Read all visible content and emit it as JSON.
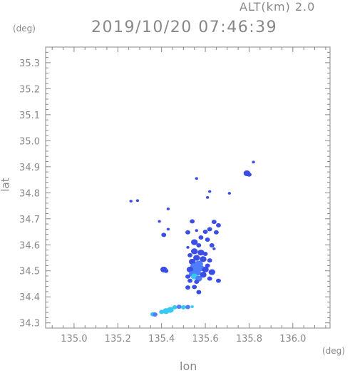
{
  "header": {
    "altitude_label": "ALT(km) 2.0",
    "datetime": "2019/10/20 07:46:39"
  },
  "axes": {
    "x_unit": "(deg)",
    "y_unit": "(deg)",
    "x_title": "lon",
    "y_title": "lat"
  },
  "colors": {
    "axis": "#888888",
    "echo_dark": "#3a4ee6",
    "echo_mid": "#4f7dff",
    "echo_light": "#38c9f2",
    "background": "#ffffff"
  },
  "chart_data": {
    "type": "scatter",
    "xlim": [
      134.87,
      136.17
    ],
    "ylim": [
      34.28,
      35.36
    ],
    "x_ticks": [
      135.0,
      135.2,
      135.4,
      135.6,
      135.8,
      136.0
    ],
    "x_tick_labels": [
      "135.0",
      "135.2",
      "135.4",
      "135.6",
      "135.8",
      "136.0"
    ],
    "y_ticks": [
      34.3,
      34.4,
      34.5,
      34.6,
      34.7,
      34.8,
      34.9,
      35.0,
      35.1,
      35.2,
      35.3
    ],
    "y_tick_labels": [
      "34.3",
      "34.4",
      "34.5",
      "34.6",
      "34.7",
      "34.8",
      "34.9",
      "35.0",
      "35.1",
      "35.2",
      "35.3"
    ],
    "grid": false,
    "points": [
      {
        "lon": 135.79,
        "lat": 34.875,
        "c": "dark",
        "s": 3
      },
      {
        "lon": 135.8,
        "lat": 34.87,
        "c": "dark",
        "s": 2
      },
      {
        "lon": 135.82,
        "lat": 34.918,
        "c": "dark",
        "s": 1
      },
      {
        "lon": 135.26,
        "lat": 34.768,
        "c": "dark",
        "s": 1
      },
      {
        "lon": 135.29,
        "lat": 34.77,
        "c": "dark",
        "s": 1
      },
      {
        "lon": 135.56,
        "lat": 34.855,
        "c": "dark",
        "s": 1
      },
      {
        "lon": 135.62,
        "lat": 34.805,
        "c": "dark",
        "s": 1
      },
      {
        "lon": 135.61,
        "lat": 34.782,
        "c": "dark",
        "s": 1
      },
      {
        "lon": 135.71,
        "lat": 34.798,
        "c": "dark",
        "s": 1
      },
      {
        "lon": 135.43,
        "lat": 34.738,
        "c": "dark",
        "s": 1
      },
      {
        "lon": 135.54,
        "lat": 34.69,
        "c": "dark",
        "s": 2
      },
      {
        "lon": 135.64,
        "lat": 34.688,
        "c": "dark",
        "s": 2
      },
      {
        "lon": 135.66,
        "lat": 34.675,
        "c": "dark",
        "s": 2
      },
      {
        "lon": 135.39,
        "lat": 34.69,
        "c": "dark",
        "s": 1
      },
      {
        "lon": 135.43,
        "lat": 34.66,
        "c": "dark",
        "s": 1
      },
      {
        "lon": 135.41,
        "lat": 34.638,
        "c": "dark",
        "s": 2
      },
      {
        "lon": 135.52,
        "lat": 34.648,
        "c": "dark",
        "s": 2
      },
      {
        "lon": 135.56,
        "lat": 34.655,
        "c": "dark",
        "s": 1
      },
      {
        "lon": 135.6,
        "lat": 34.65,
        "c": "dark",
        "s": 2
      },
      {
        "lon": 135.62,
        "lat": 34.66,
        "c": "dark",
        "s": 2
      },
      {
        "lon": 135.65,
        "lat": 34.648,
        "c": "dark",
        "s": 2
      },
      {
        "lon": 135.58,
        "lat": 34.628,
        "c": "dark",
        "s": 2
      },
      {
        "lon": 135.61,
        "lat": 34.62,
        "c": "dark",
        "s": 2
      },
      {
        "lon": 135.55,
        "lat": 34.61,
        "c": "dark",
        "s": 3
      },
      {
        "lon": 135.57,
        "lat": 34.598,
        "c": "dark",
        "s": 2
      },
      {
        "lon": 135.52,
        "lat": 34.59,
        "c": "dark",
        "s": 1
      },
      {
        "lon": 135.63,
        "lat": 34.598,
        "c": "dark",
        "s": 2
      },
      {
        "lon": 135.64,
        "lat": 34.585,
        "c": "dark",
        "s": 1
      },
      {
        "lon": 135.55,
        "lat": 34.575,
        "c": "dark",
        "s": 3
      },
      {
        "lon": 135.58,
        "lat": 34.57,
        "c": "dark",
        "s": 3
      },
      {
        "lon": 135.6,
        "lat": 34.565,
        "c": "dark",
        "s": 2
      },
      {
        "lon": 135.53,
        "lat": 34.56,
        "c": "dark",
        "s": 2
      },
      {
        "lon": 135.56,
        "lat": 34.55,
        "c": "dark",
        "s": 3
      },
      {
        "lon": 135.59,
        "lat": 34.545,
        "c": "dark",
        "s": 3
      },
      {
        "lon": 135.62,
        "lat": 34.54,
        "c": "dark",
        "s": 2
      },
      {
        "lon": 135.54,
        "lat": 34.535,
        "c": "dark",
        "s": 3
      },
      {
        "lon": 135.57,
        "lat": 34.525,
        "c": "mid",
        "s": 4
      },
      {
        "lon": 135.55,
        "lat": 34.515,
        "c": "mid",
        "s": 4
      },
      {
        "lon": 135.58,
        "lat": 34.51,
        "c": "mid",
        "s": 3
      },
      {
        "lon": 135.53,
        "lat": 34.505,
        "c": "dark",
        "s": 3
      },
      {
        "lon": 135.6,
        "lat": 34.505,
        "c": "dark",
        "s": 3
      },
      {
        "lon": 135.56,
        "lat": 34.495,
        "c": "mid",
        "s": 4
      },
      {
        "lon": 135.54,
        "lat": 34.488,
        "c": "mid",
        "s": 3
      },
      {
        "lon": 135.59,
        "lat": 34.485,
        "c": "dark",
        "s": 3
      },
      {
        "lon": 135.55,
        "lat": 34.478,
        "c": "light",
        "s": 3
      },
      {
        "lon": 135.52,
        "lat": 34.478,
        "c": "dark",
        "s": 2
      },
      {
        "lon": 135.57,
        "lat": 34.47,
        "c": "mid",
        "s": 3
      },
      {
        "lon": 135.53,
        "lat": 34.462,
        "c": "dark",
        "s": 2
      },
      {
        "lon": 135.56,
        "lat": 34.458,
        "c": "dark",
        "s": 2
      },
      {
        "lon": 135.63,
        "lat": 34.495,
        "c": "dark",
        "s": 3
      },
      {
        "lon": 135.62,
        "lat": 34.47,
        "c": "dark",
        "s": 2
      },
      {
        "lon": 135.66,
        "lat": 34.462,
        "c": "dark",
        "s": 2
      },
      {
        "lon": 135.61,
        "lat": 34.52,
        "c": "dark",
        "s": 2
      },
      {
        "lon": 135.41,
        "lat": 34.505,
        "c": "dark",
        "s": 3
      },
      {
        "lon": 135.42,
        "lat": 34.5,
        "c": "dark",
        "s": 2
      },
      {
        "lon": 135.52,
        "lat": 34.436,
        "c": "dark",
        "s": 2
      },
      {
        "lon": 135.55,
        "lat": 34.438,
        "c": "dark",
        "s": 2
      },
      {
        "lon": 135.57,
        "lat": 34.418,
        "c": "dark",
        "s": 2
      },
      {
        "lon": 135.46,
        "lat": 34.36,
        "c": "light",
        "s": 2
      },
      {
        "lon": 135.48,
        "lat": 34.362,
        "c": "mid",
        "s": 2
      },
      {
        "lon": 135.5,
        "lat": 34.36,
        "c": "light",
        "s": 2
      },
      {
        "lon": 135.52,
        "lat": 34.361,
        "c": "mid",
        "s": 2
      },
      {
        "lon": 135.54,
        "lat": 34.362,
        "c": "light",
        "s": 1
      },
      {
        "lon": 135.44,
        "lat": 34.35,
        "c": "light",
        "s": 3
      },
      {
        "lon": 135.42,
        "lat": 34.345,
        "c": "light",
        "s": 3
      },
      {
        "lon": 135.4,
        "lat": 34.342,
        "c": "light",
        "s": 2
      },
      {
        "lon": 135.36,
        "lat": 34.333,
        "c": "light",
        "s": 2
      },
      {
        "lon": 135.37,
        "lat": 34.332,
        "c": "mid",
        "s": 2
      }
    ]
  }
}
